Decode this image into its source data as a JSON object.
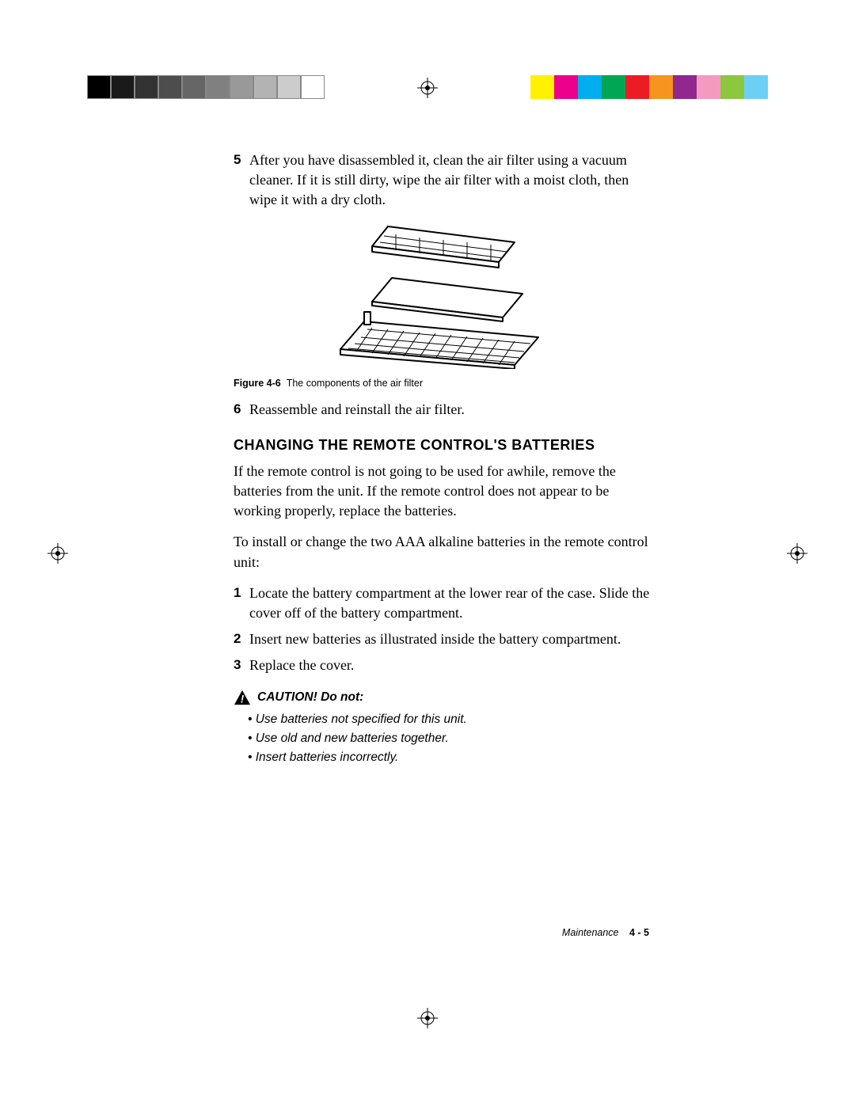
{
  "colorbars": {
    "left_swatches": [
      "#000000",
      "#1a1a1a",
      "#333333",
      "#4d4d4d",
      "#666666",
      "#808080",
      "#999999",
      "#b3b3b3",
      "#cccccc",
      "#ffffff"
    ],
    "right_swatches": [
      "#fff200",
      "#ec008c",
      "#00aeef",
      "#00a651",
      "#ed1c24",
      "#f7941d",
      "#92278f",
      "#f49ac1",
      "#8dc63f",
      "#6dcff6"
    ]
  },
  "steps_top": [
    {
      "n": "5",
      "text": "After you have disassembled it, clean the air filter using a vacuum cleaner. If it is still dirty, wipe the air filter with a moist cloth, then wipe it with a dry cloth."
    }
  ],
  "figure": {
    "caption_label": "Figure 4-6",
    "caption_text": "The components of the air filter"
  },
  "steps_mid": [
    {
      "n": "6",
      "text": "Reassemble and reinstall the air filter."
    }
  ],
  "section_heading": "CHANGING THE REMOTE CONTROL'S BATTERIES",
  "paragraphs": [
    "If the remote control is not going to be used for awhile, remove the batteries from the unit. If the remote control does not appear to be working properly, replace the batteries.",
    "To install or change the two AAA alkaline batteries in the remote control unit:"
  ],
  "steps_bottom": [
    {
      "n": "1",
      "text": "Locate the battery compartment at the lower rear of the case. Slide the cover off of the battery compartment."
    },
    {
      "n": "2",
      "text": "Insert new batteries as illustrated inside the battery compartment."
    },
    {
      "n": "3",
      "text": "Replace the cover."
    }
  ],
  "caution": {
    "head": "CAUTION!  Do not:",
    "items": [
      "Use batteries not specified for this unit.",
      "Use old and new batteries together.",
      "Insert batteries incorrectly."
    ]
  },
  "footer": {
    "section": "Maintenance",
    "page": "4 - 5"
  }
}
